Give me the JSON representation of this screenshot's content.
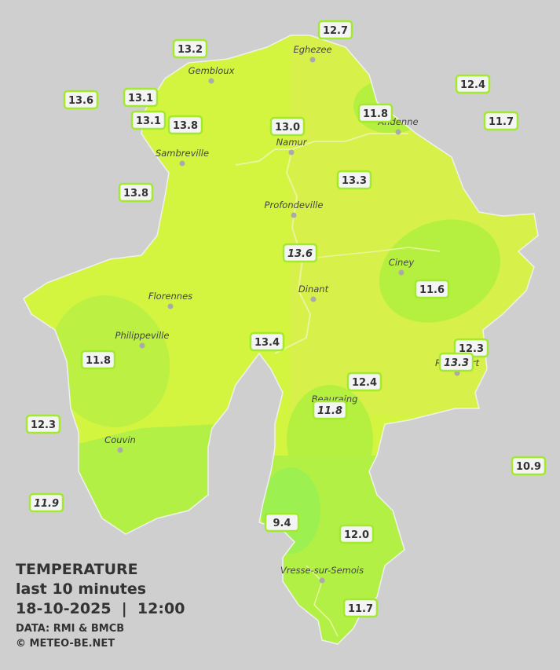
{
  "legend": {
    "title": "TEMPERATURE",
    "period": "last 10 minutes",
    "timestamp": "18-10-2025  |  12:00",
    "source": "DATA: RMI & BMCB",
    "credit": "© METEO-BE.NET"
  },
  "cities": [
    "Eghezee",
    "Gembloux",
    "Andenne",
    "Namur",
    "Sambreville",
    "Profondeville",
    "Ciney",
    "Dinant",
    "Florennes",
    "Philippeville",
    "Rochefort",
    "Beauraing",
    "Couvin",
    "Vresse-sur-Semois"
  ],
  "stations": [
    {
      "label": "12.7"
    },
    {
      "label": "13.2"
    },
    {
      "label": "12.4"
    },
    {
      "label": "13.6"
    },
    {
      "label": "13.1"
    },
    {
      "label": "11.8"
    },
    {
      "label": "11.7"
    },
    {
      "label": "13.1"
    },
    {
      "label": "13.8"
    },
    {
      "label": "13.0"
    },
    {
      "label": "13.3"
    },
    {
      "label": "13.8"
    },
    {
      "label": "13.6",
      "italic": true
    },
    {
      "label": "11.6"
    },
    {
      "label": "13.4"
    },
    {
      "label": "12.3"
    },
    {
      "label": "11.8"
    },
    {
      "label": "13.3",
      "italic": true
    },
    {
      "label": "12.4"
    },
    {
      "label": "11.8",
      "italic": true
    },
    {
      "label": "12.3"
    },
    {
      "label": "10.9"
    },
    {
      "label": "11.9",
      "italic": true
    },
    {
      "label": "9.4"
    },
    {
      "label": "12.0"
    },
    {
      "label": "11.7"
    }
  ]
}
